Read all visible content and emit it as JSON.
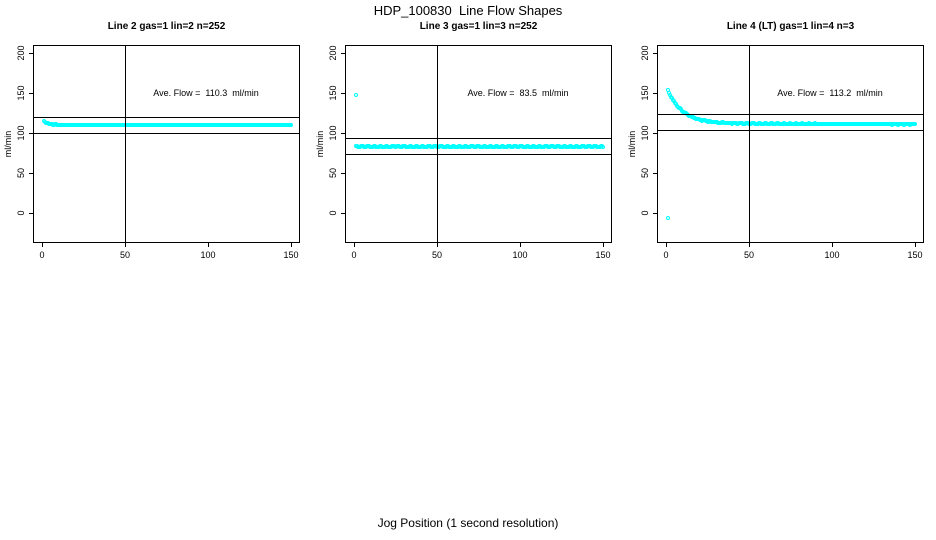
{
  "title": "HDP_100830  Line Flow Shapes",
  "xlabel": "Jog Position (1 second resolution)",
  "colors": {
    "points": "#00FFFF",
    "axis": "#000000",
    "text": "#000000",
    "background": "#FFFFFF"
  },
  "chart_data": {
    "type": "scatter",
    "title": "HDP_100830  Line Flow Shapes",
    "xlabel": "Jog Position (1 second resolution)",
    "ylabel": "ml/min",
    "x_ticks": [
      0,
      50,
      100,
      150
    ],
    "y_ticks": [
      0,
      50,
      100,
      150,
      200
    ],
    "xlim": [
      -5,
      155
    ],
    "ylim": [
      -37,
      210
    ],
    "grid": false,
    "panels": [
      {
        "title": "Line 2 gas=1 lin=2 n=252",
        "annotation": "Ave. Flow =  110.3  ml/min",
        "ave_flow": 110.3,
        "n": 252,
        "ref_line_upper": 120.3,
        "ref_line_lower": 100.3,
        "vline_x": 50,
        "series": [
          {
            "name": "flow",
            "x_start": 1,
            "x_end": 150,
            "step": 0.6,
            "y_base": 110.2,
            "decay_amp": 5,
            "decay_tau": 2.5,
            "drift": 0,
            "jitter": 0.3
          }
        ],
        "outliers": []
      },
      {
        "title": "Line 3 gas=1 lin=3 n=252",
        "annotation": "Ave. Flow =  83.5  ml/min",
        "ave_flow": 83.5,
        "n": 252,
        "ref_line_upper": 93.5,
        "ref_line_lower": 73.5,
        "vline_x": 50,
        "series": [
          {
            "name": "flow",
            "x_start": 1,
            "x_end": 150,
            "step": 0.6,
            "y_base": 83.0,
            "decay_amp": 0,
            "decay_tau": 1,
            "drift": 0,
            "jitter": 0.4
          }
        ],
        "outliers": [
          {
            "x": 1,
            "y": 147
          }
        ]
      },
      {
        "title": "Line 4 (LT) gas=1 lin=4 n=3",
        "annotation": "Ave. Flow =  113.2  ml/min",
        "ave_flow": 113.2,
        "n": 3,
        "ref_line_upper": 123.2,
        "ref_line_lower": 103.2,
        "vline_x": 50,
        "series": [
          {
            "name": "flow",
            "x_start": 1,
            "x_end": 150,
            "step": 0.6,
            "y_base": 112.0,
            "decay_amp": 41,
            "decay_tau": 9,
            "drift": -1,
            "jitter": 0.5
          }
        ],
        "outliers": [
          {
            "x": 1,
            "y": -6
          }
        ]
      }
    ]
  }
}
